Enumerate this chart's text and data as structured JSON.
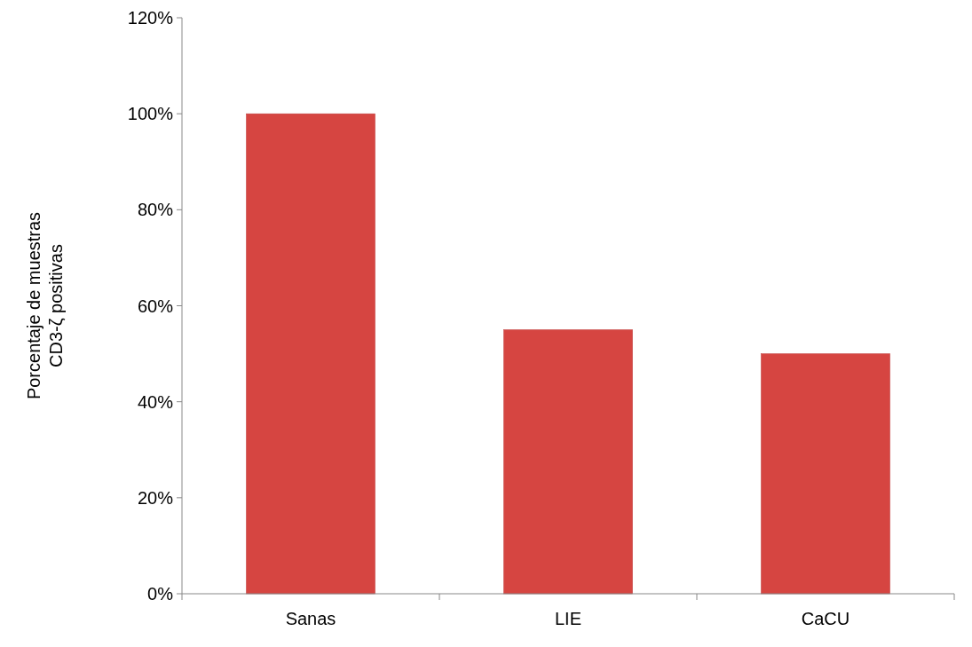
{
  "chart_data": {
    "type": "bar",
    "ylabel": "Porcentaje de muestras\nCD3-ζ positivas",
    "categories": [
      "Sanas",
      "LIE",
      "CaCU"
    ],
    "values": [
      100,
      55,
      50
    ],
    "color": "#d64541",
    "ylim": [
      0,
      120
    ],
    "yticks": [
      {
        "value": 0,
        "label": "0%"
      },
      {
        "value": 20,
        "label": "20%"
      },
      {
        "value": 40,
        "label": "40%"
      },
      {
        "value": 60,
        "label": "60%"
      },
      {
        "value": 80,
        "label": "80%"
      },
      {
        "value": 100,
        "label": "100%"
      },
      {
        "value": 120,
        "label": "120%"
      }
    ],
    "grid": false
  }
}
